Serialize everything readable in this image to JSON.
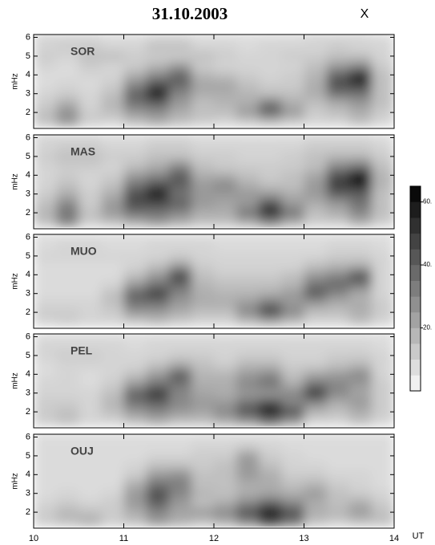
{
  "chart_data": {
    "type": "heatmap",
    "title": "31.10.2003",
    "component": "X",
    "xlabel": "UT",
    "ylabel": "mHz",
    "xlim": [
      10,
      14
    ],
    "xticks": [
      10,
      11,
      12,
      13,
      14
    ],
    "xbins": [
      10,
      10.25,
      10.5,
      10.75,
      11,
      11.25,
      11.5,
      11.75,
      12,
      12.25,
      12.5,
      12.75,
      13,
      13.25,
      13.5,
      13.75,
      14
    ],
    "ylim": [
      1.15,
      6.15
    ],
    "yticks": [
      2,
      3,
      4,
      5,
      6
    ],
    "ybins": [
      1.25,
      1.75,
      2.25,
      2.75,
      3.25,
      3.75,
      4.25,
      4.75,
      5.25,
      5.75,
      6.25
    ],
    "clim": [
      0,
      65
    ],
    "cticks": [
      {
        "value": 20,
        "label": "20."
      },
      {
        "value": 40,
        "label": "40."
      },
      {
        "value": 60,
        "label": "60."
      }
    ],
    "panels": [
      {
        "label": "SOR",
        "z": [
          [
            15,
            25,
            12,
            10,
            15,
            20,
            15,
            12,
            10,
            12,
            15,
            12,
            10,
            10,
            15,
            10
          ],
          [
            15,
            28,
            12,
            15,
            25,
            28,
            20,
            15,
            15,
            25,
            40,
            25,
            12,
            15,
            20,
            12
          ],
          [
            12,
            20,
            10,
            18,
            35,
            40,
            25,
            15,
            18,
            20,
            35,
            20,
            15,
            20,
            25,
            15
          ],
          [
            10,
            12,
            10,
            15,
            40,
            62,
            30,
            20,
            20,
            18,
            15,
            15,
            20,
            35,
            35,
            15
          ],
          [
            8,
            10,
            8,
            12,
            30,
            45,
            38,
            22,
            22,
            15,
            12,
            12,
            20,
            45,
            50,
            15
          ],
          [
            8,
            8,
            10,
            10,
            20,
            30,
            40,
            18,
            15,
            12,
            10,
            12,
            18,
            40,
            58,
            15
          ],
          [
            10,
            8,
            12,
            10,
            12,
            18,
            25,
            12,
            10,
            10,
            10,
            10,
            15,
            25,
            30,
            12
          ],
          [
            12,
            10,
            15,
            15,
            12,
            12,
            12,
            15,
            12,
            10,
            10,
            12,
            12,
            15,
            15,
            10
          ],
          [
            10,
            12,
            12,
            10,
            10,
            15,
            15,
            10,
            10,
            8,
            10,
            10,
            10,
            12,
            10,
            10
          ],
          [
            10,
            10,
            10,
            8,
            8,
            10,
            10,
            8,
            8,
            8,
            8,
            8,
            10,
            10,
            10,
            8
          ]
        ]
      },
      {
        "label": "MAS",
        "z": [
          [
            15,
            30,
            12,
            15,
            20,
            25,
            20,
            15,
            15,
            20,
            30,
            20,
            12,
            12,
            20,
            12
          ],
          [
            18,
            35,
            15,
            25,
            35,
            35,
            30,
            20,
            20,
            35,
            55,
            35,
            15,
            20,
            30,
            15
          ],
          [
            15,
            30,
            12,
            25,
            45,
            45,
            40,
            25,
            22,
            25,
            45,
            25,
            20,
            25,
            35,
            15
          ],
          [
            12,
            20,
            12,
            20,
            45,
            62,
            35,
            25,
            25,
            25,
            25,
            20,
            25,
            40,
            40,
            15
          ],
          [
            10,
            15,
            10,
            15,
            35,
            45,
            40,
            25,
            30,
            20,
            15,
            15,
            25,
            50,
            55,
            18
          ],
          [
            10,
            12,
            10,
            12,
            25,
            30,
            42,
            20,
            20,
            15,
            12,
            15,
            22,
            45,
            65,
            18
          ],
          [
            10,
            12,
            12,
            10,
            15,
            20,
            30,
            15,
            12,
            12,
            12,
            12,
            15,
            30,
            35,
            15
          ],
          [
            12,
            15,
            15,
            12,
            12,
            15,
            15,
            12,
            12,
            10,
            10,
            12,
            15,
            18,
            18,
            12
          ],
          [
            10,
            12,
            12,
            10,
            10,
            12,
            12,
            10,
            10,
            10,
            10,
            10,
            12,
            12,
            12,
            10
          ],
          [
            10,
            10,
            10,
            8,
            8,
            10,
            10,
            8,
            8,
            8,
            8,
            8,
            10,
            10,
            10,
            8
          ]
        ]
      },
      {
        "label": "MUO",
        "z": [
          [
            10,
            12,
            10,
            10,
            12,
            15,
            12,
            10,
            10,
            15,
            20,
            15,
            10,
            10,
            15,
            10
          ],
          [
            12,
            12,
            10,
            12,
            25,
            25,
            20,
            15,
            15,
            30,
            48,
            30,
            15,
            15,
            20,
            12
          ],
          [
            10,
            10,
            10,
            15,
            35,
            35,
            25,
            20,
            20,
            25,
            35,
            25,
            25,
            20,
            20,
            12
          ],
          [
            8,
            8,
            8,
            15,
            40,
            50,
            30,
            20,
            18,
            18,
            20,
            25,
            42,
            30,
            20,
            10
          ],
          [
            8,
            8,
            8,
            10,
            25,
            35,
            38,
            18,
            15,
            15,
            15,
            18,
            35,
            38,
            35,
            10
          ],
          [
            8,
            8,
            8,
            8,
            15,
            25,
            48,
            15,
            12,
            12,
            12,
            15,
            25,
            30,
            45,
            10
          ],
          [
            8,
            8,
            8,
            8,
            10,
            15,
            25,
            12,
            10,
            10,
            10,
            10,
            15,
            18,
            20,
            10
          ],
          [
            10,
            10,
            10,
            10,
            10,
            10,
            12,
            10,
            10,
            10,
            10,
            10,
            10,
            12,
            12,
            10
          ],
          [
            8,
            10,
            10,
            8,
            8,
            10,
            10,
            10,
            8,
            8,
            8,
            8,
            8,
            10,
            10,
            8
          ],
          [
            8,
            8,
            8,
            8,
            8,
            8,
            8,
            8,
            8,
            8,
            8,
            8,
            8,
            8,
            8,
            8
          ]
        ]
      },
      {
        "label": "PEL",
        "z": [
          [
            12,
            15,
            10,
            10,
            15,
            20,
            15,
            15,
            20,
            25,
            35,
            25,
            10,
            10,
            15,
            10
          ],
          [
            12,
            15,
            10,
            15,
            25,
            30,
            25,
            22,
            30,
            45,
            65,
            45,
            18,
            15,
            20,
            12
          ],
          [
            12,
            12,
            10,
            18,
            35,
            40,
            30,
            25,
            25,
            35,
            45,
            30,
            30,
            20,
            25,
            12
          ],
          [
            10,
            10,
            10,
            15,
            40,
            52,
            30,
            22,
            20,
            25,
            25,
            30,
            52,
            30,
            22,
            12
          ],
          [
            10,
            10,
            8,
            12,
            25,
            35,
            35,
            20,
            20,
            30,
            35,
            20,
            35,
            30,
            25,
            12
          ],
          [
            8,
            10,
            8,
            10,
            15,
            25,
            42,
            18,
            18,
            25,
            30,
            15,
            22,
            25,
            30,
            10
          ],
          [
            8,
            10,
            10,
            10,
            10,
            15,
            22,
            15,
            12,
            18,
            18,
            12,
            12,
            15,
            18,
            10
          ],
          [
            10,
            12,
            12,
            10,
            10,
            10,
            12,
            12,
            10,
            12,
            12,
            10,
            10,
            12,
            12,
            10
          ],
          [
            10,
            10,
            10,
            10,
            8,
            10,
            10,
            10,
            10,
            10,
            10,
            10,
            10,
            10,
            10,
            8
          ],
          [
            8,
            8,
            8,
            8,
            8,
            8,
            8,
            8,
            8,
            8,
            8,
            8,
            8,
            8,
            8,
            8
          ]
        ]
      },
      {
        "label": "OUJ",
        "z": [
          [
            12,
            15,
            20,
            12,
            15,
            25,
            20,
            15,
            20,
            30,
            45,
            35,
            15,
            12,
            15,
            15
          ],
          [
            12,
            18,
            15,
            12,
            20,
            30,
            22,
            25,
            30,
            45,
            65,
            45,
            20,
            18,
            25,
            15
          ],
          [
            10,
            12,
            10,
            12,
            25,
            40,
            25,
            15,
            20,
            30,
            40,
            30,
            20,
            15,
            20,
            12
          ],
          [
            8,
            10,
            8,
            10,
            25,
            45,
            30,
            18,
            15,
            20,
            22,
            20,
            25,
            15,
            12,
            10
          ],
          [
            8,
            8,
            8,
            8,
            20,
            35,
            32,
            15,
            15,
            20,
            20,
            15,
            18,
            12,
            10,
            8
          ],
          [
            8,
            8,
            8,
            8,
            12,
            25,
            28,
            15,
            15,
            25,
            20,
            12,
            12,
            10,
            10,
            8
          ],
          [
            8,
            8,
            8,
            8,
            10,
            15,
            15,
            12,
            15,
            25,
            15,
            10,
            10,
            8,
            8,
            8
          ],
          [
            8,
            8,
            8,
            8,
            8,
            10,
            10,
            12,
            12,
            25,
            12,
            10,
            8,
            8,
            8,
            8
          ],
          [
            8,
            8,
            8,
            8,
            8,
            8,
            8,
            10,
            10,
            12,
            10,
            8,
            8,
            8,
            8,
            8
          ],
          [
            8,
            8,
            8,
            8,
            8,
            8,
            8,
            8,
            8,
            8,
            8,
            8,
            8,
            8,
            8,
            8
          ]
        ]
      }
    ]
  }
}
